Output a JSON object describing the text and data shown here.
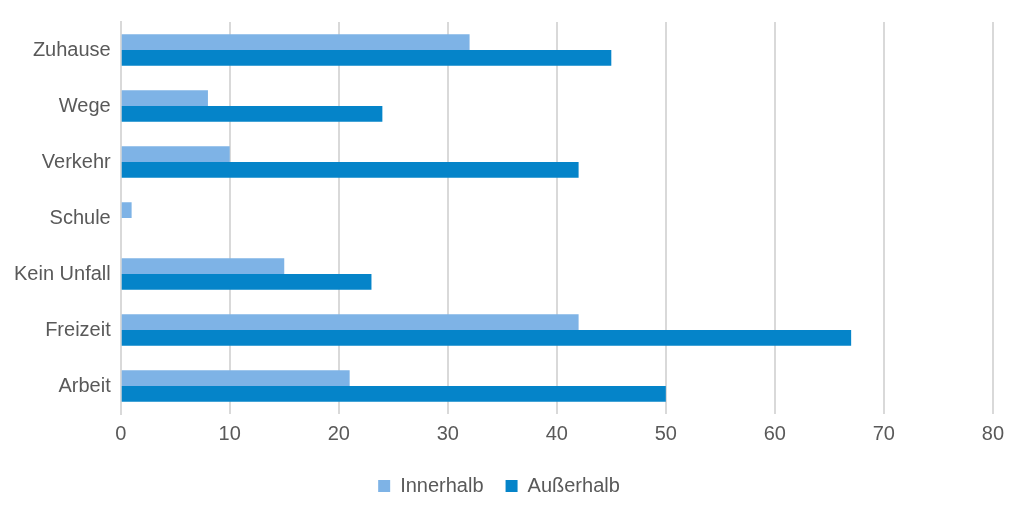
{
  "chart_data": {
    "type": "bar",
    "orientation": "horizontal",
    "categories": [
      "Zuhause",
      "Wege",
      "Verkehr",
      "Schule",
      "Kein Unfall",
      "Freizeit",
      "Arbeit"
    ],
    "series": [
      {
        "name": "Innerhalb",
        "color": "#7eb3e6",
        "values": [
          32,
          8,
          10,
          1,
          15,
          42,
          21
        ]
      },
      {
        "name": "Außerhalb",
        "color": "#0584c9",
        "values": [
          45,
          24,
          42,
          0,
          23,
          67,
          50
        ]
      }
    ],
    "xlim": [
      0,
      80
    ],
    "xticks": [
      0,
      10,
      20,
      30,
      40,
      50,
      60,
      70,
      80
    ],
    "grid": "x",
    "legend": "bottom"
  }
}
